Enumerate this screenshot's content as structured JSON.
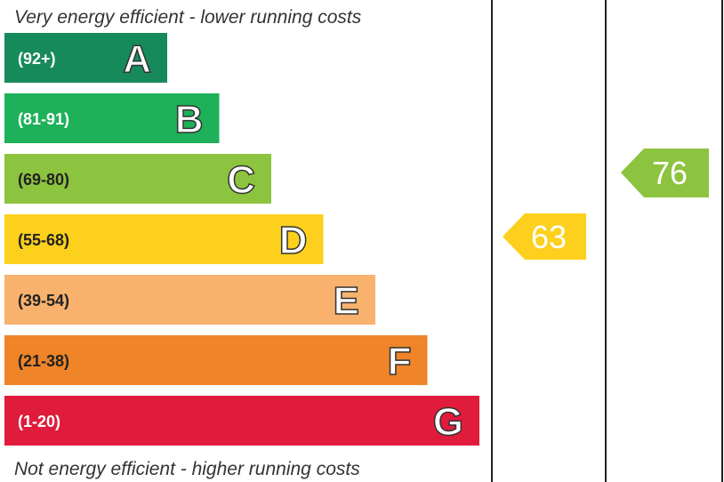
{
  "top_caption": "Very energy efficient - lower running costs",
  "bottom_caption": "Not energy efficient - higher running costs",
  "bands": [
    {
      "range": "(92+)",
      "letter": "A",
      "color": "#178a5c",
      "text_color": "#ffffff"
    },
    {
      "range": "(81-91)",
      "letter": "B",
      "color": "#1eb159",
      "text_color": "#ffffff"
    },
    {
      "range": "(69-80)",
      "letter": "C",
      "color": "#8cc43f",
      "text_color": "#222222"
    },
    {
      "range": "(55-68)",
      "letter": "D",
      "color": "#fcd01c",
      "text_color": "#222222"
    },
    {
      "range": "(39-54)",
      "letter": "E",
      "color": "#f8b26e",
      "text_color": "#222222"
    },
    {
      "range": "(21-38)",
      "letter": "F",
      "color": "#ef8428",
      "text_color": "#222222"
    },
    {
      "range": "(1-20)",
      "letter": "G",
      "color": "#e01b3c",
      "text_color": "#ffffff"
    }
  ],
  "current": {
    "value": "63",
    "color": "#fcd01c"
  },
  "potential": {
    "value": "76",
    "color": "#8cc43f"
  }
}
